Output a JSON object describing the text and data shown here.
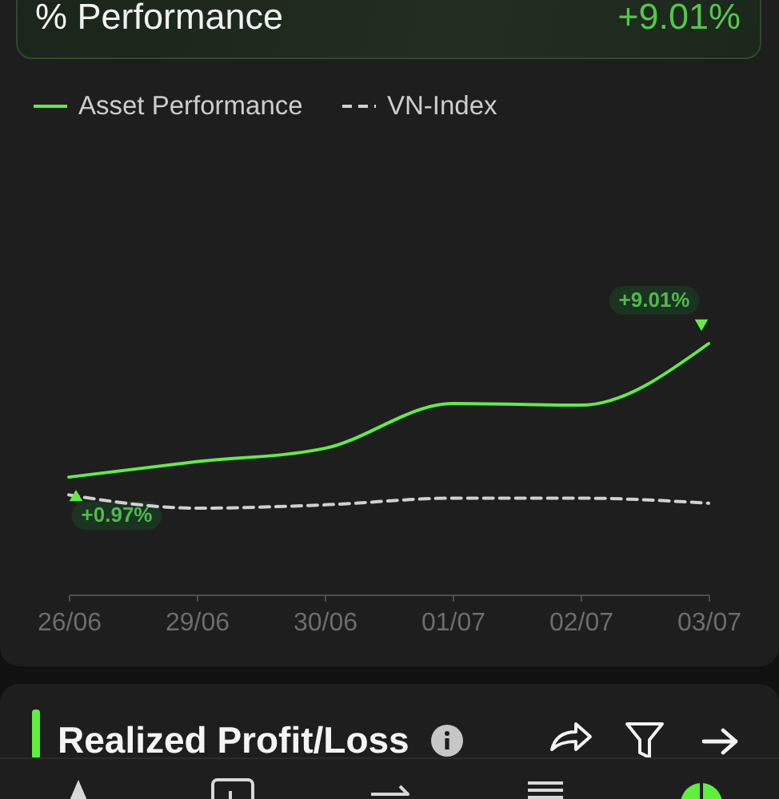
{
  "chart_data": [
    {
      "type": "line",
      "title": "% Performance",
      "annotations": [
        "+9.01%"
      ],
      "categories": [
        "26/06",
        "29/06",
        "30/06",
        "01/07",
        "02/07",
        "03/07"
      ],
      "series": [
        {
          "name": "Asset Performance",
          "color": "#61ec43",
          "line_style": "solid",
          "values": [
            0.97,
            1.9,
            2.7,
            5.4,
            5.3,
            9.01
          ],
          "value_labels": [
            "+0.97%",
            null,
            null,
            null,
            null,
            "+9.01%"
          ]
        },
        {
          "name": "VN-Index",
          "color": "#d0d0d0",
          "line_style": "dashed",
          "values": [
            -0.1,
            -0.9,
            -0.7,
            -0.3,
            -0.3,
            -0.6
          ]
        }
      ],
      "tick_labels": "x",
      "legend": "top left"
    },
    {
      "type": "other",
      "title": "Realized Profit/Loss"
    }
  ]
}
